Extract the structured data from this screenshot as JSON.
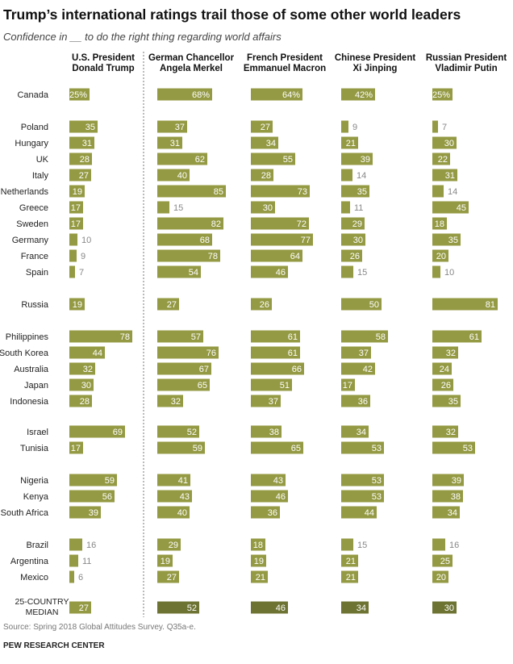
{
  "title": "Trump’s international ratings trail those of some other world leaders",
  "subtitle": "Confidence in __ to do the right thing regarding world affairs",
  "source": "Source: Spring 2018 Global Attitudes Survey. Q35a-e.",
  "organization": "PEW RESEARCH CENTER",
  "colors": {
    "bar": "#949a43",
    "median_bar": "#6d7332",
    "value_inside": "#ffffff",
    "value_outside": "#888888",
    "divider": "#777777"
  },
  "chart_data": {
    "type": "bar",
    "orientation": "horizontal",
    "unit": "%",
    "categories": [
      "Canada",
      "Poland",
      "Hungary",
      "UK",
      "Italy",
      "Netherlands",
      "Greece",
      "Sweden",
      "Germany",
      "France",
      "Spain",
      "Russia",
      "Philippines",
      "South Korea",
      "Australia",
      "Japan",
      "Indonesia",
      "Israel",
      "Tunisia",
      "Nigeria",
      "Kenya",
      "South Africa",
      "Brazil",
      "Argentina",
      "Mexico"
    ],
    "median_label": [
      "25-COUNTRY",
      "MEDIAN"
    ],
    "series": [
      {
        "header": [
          "U.S. President",
          "Donald Trump"
        ],
        "values": [
          25,
          35,
          31,
          28,
          27,
          19,
          17,
          17,
          10,
          9,
          7,
          19,
          78,
          44,
          32,
          30,
          28,
          69,
          17,
          59,
          56,
          39,
          16,
          11,
          6
        ],
        "median": 27
      },
      {
        "header": [
          "German Chancellor",
          "Angela Merkel"
        ],
        "values": [
          68,
          37,
          31,
          62,
          40,
          85,
          15,
          82,
          68,
          78,
          54,
          27,
          57,
          76,
          67,
          65,
          32,
          52,
          59,
          41,
          43,
          40,
          29,
          19,
          27
        ],
        "median": 52
      },
      {
        "header": [
          "French President",
          "Emmanuel Macron"
        ],
        "values": [
          64,
          27,
          34,
          55,
          28,
          73,
          30,
          72,
          77,
          64,
          46,
          26,
          61,
          61,
          66,
          51,
          37,
          38,
          65,
          43,
          46,
          36,
          18,
          19,
          21
        ],
        "median": 46
      },
      {
        "header": [
          "Chinese President",
          "Xi Jinping"
        ],
        "values": [
          42,
          9,
          21,
          39,
          14,
          35,
          11,
          29,
          30,
          26,
          15,
          50,
          58,
          37,
          42,
          17,
          36,
          34,
          53,
          53,
          53,
          44,
          15,
          21,
          21
        ],
        "median": 34
      },
      {
        "header": [
          "Russian President",
          "Vladimir Putin"
        ],
        "values": [
          25,
          7,
          30,
          22,
          31,
          14,
          45,
          18,
          35,
          20,
          10,
          81,
          61,
          32,
          24,
          26,
          35,
          32,
          53,
          39,
          38,
          34,
          16,
          25,
          20
        ],
        "median": 30
      }
    ],
    "first_row_suffix": "%",
    "divider_after_column": 0
  }
}
